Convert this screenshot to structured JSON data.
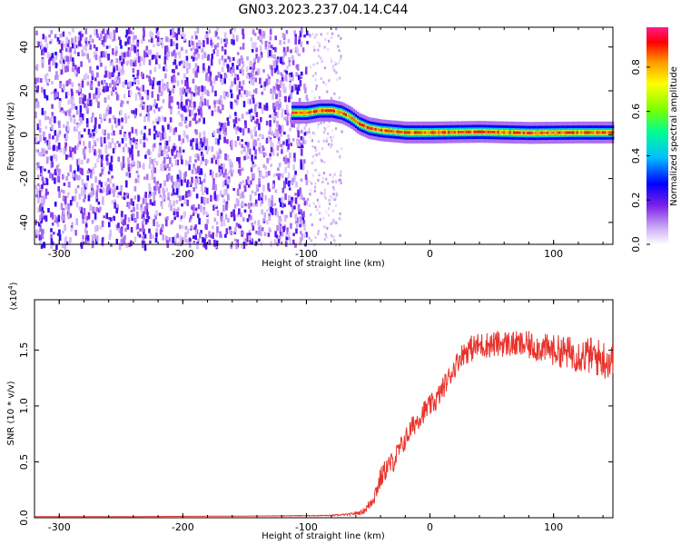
{
  "figure": {
    "title": "GN03.2023.237.04.14.C44"
  },
  "chart_data": [
    {
      "type": "heatmap",
      "title": "GN03.2023.237.04.14.C44",
      "xlabel": "Height of straight line (km)",
      "ylabel": "Frequency (Hz)",
      "xlim": [
        -320,
        148
      ],
      "ylim": [
        -50,
        49
      ],
      "xticks": [
        -300,
        -200,
        -100,
        0,
        100
      ],
      "yticks": [
        -40,
        -20,
        0,
        20,
        40
      ],
      "colorbar": {
        "label": "Normalized spectral amplitude",
        "range": [
          0,
          0.98
        ],
        "ticks": [
          0.0,
          0.2,
          0.4,
          0.6,
          0.8
        ],
        "colors": [
          "#ffffff",
          "#c9a6f5",
          "#7a1fe8",
          "#0000ff",
          "#00bfff",
          "#00ff90",
          "#7cff00",
          "#ffff00",
          "#ff9900",
          "#ff0000",
          "#ff1a8c"
        ]
      },
      "regions": [
        {
          "name": "noise",
          "x_range": [
            -320,
            -100
          ],
          "freq_range": [
            -50,
            49
          ],
          "amplitude": [
            0.05,
            0.25
          ]
        },
        {
          "name": "sparse",
          "x_range": [
            -100,
            -72
          ],
          "freq_range": [
            -50,
            49
          ],
          "amplitude": [
            0.02,
            0.1
          ]
        }
      ],
      "ridge": {
        "x": [
          -112,
          -100,
          -90,
          -80,
          -72,
          -65,
          -58,
          -50,
          -40,
          -30,
          -20,
          0,
          40,
          80,
          120,
          148
        ],
        "freq": [
          10,
          10,
          11,
          11,
          10,
          8,
          5,
          3,
          2,
          1.5,
          1,
          1,
          1.3,
          0.8,
          1,
          1
        ]
      }
    },
    {
      "type": "line",
      "xlabel": "Height of straight line (km)",
      "ylabel": "SNR (10 * v/v)",
      "y_multiplier": "(x10^4)",
      "xlim": [
        -320,
        148
      ],
      "ylim": [
        0,
        1.95
      ],
      "xticks": [
        -300,
        -200,
        -100,
        0,
        100
      ],
      "yticks": [
        0.0,
        0.5,
        1.0,
        1.5
      ],
      "series": [
        {
          "color": "#e8332c",
          "x": [
            -320,
            -250,
            -150,
            -80,
            -65,
            -55,
            -50,
            -45,
            -40,
            -35,
            -30,
            -25,
            -20,
            -15,
            -10,
            -5,
            0,
            5,
            10,
            15,
            20,
            25,
            30,
            35,
            40,
            50,
            60,
            70,
            80,
            90,
            100,
            110,
            120,
            130,
            140,
            148
          ],
          "values": [
            0.01,
            0.01,
            0.015,
            0.02,
            0.03,
            0.05,
            0.1,
            0.2,
            0.35,
            0.45,
            0.5,
            0.6,
            0.7,
            0.8,
            0.88,
            0.95,
            1.0,
            1.05,
            1.15,
            1.25,
            1.35,
            1.45,
            1.5,
            1.52,
            1.54,
            1.55,
            1.56,
            1.55,
            1.54,
            1.52,
            1.5,
            1.48,
            1.46,
            1.45,
            1.42,
            1.4
          ],
          "noise": [
            0,
            0,
            0,
            0.005,
            0.01,
            0.02,
            0.05,
            0.08,
            0.1,
            0.1,
            0.1,
            0.1,
            0.1,
            0.1,
            0.1,
            0.1,
            0.1,
            0.1,
            0.1,
            0.1,
            0.1,
            0.1,
            0.12,
            0.12,
            0.12,
            0.12,
            0.12,
            0.12,
            0.13,
            0.13,
            0.14,
            0.15,
            0.16,
            0.17,
            0.18,
            0.18
          ]
        }
      ]
    }
  ]
}
